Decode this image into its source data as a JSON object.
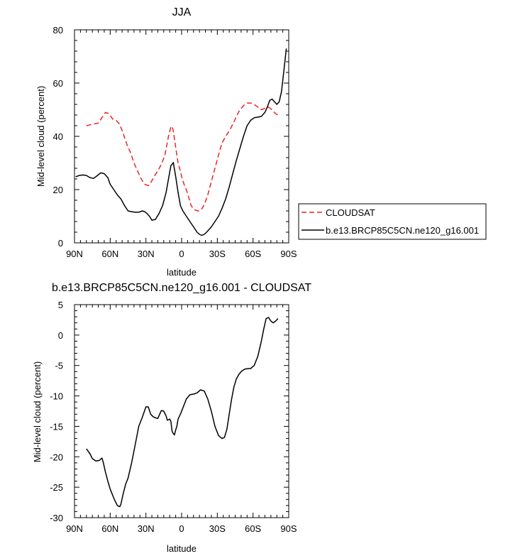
{
  "chart_data": [
    {
      "type": "line",
      "title": "JJA",
      "xlabel": "latitude",
      "ylabel": "Mid-level cloud (percent)",
      "xlim": [
        90,
        -90
      ],
      "ylim": [
        0,
        80
      ],
      "x_ticks": [
        90,
        60,
        30,
        0,
        -30,
        -60,
        -90
      ],
      "x_tick_labels": [
        "90N",
        "60N",
        "30N",
        "0",
        "30S",
        "60S",
        "90S"
      ],
      "y_ticks": [
        0,
        20,
        40,
        60,
        80
      ],
      "y_tick_labels": [
        "0",
        "20",
        "40",
        "60",
        "80"
      ],
      "legend": "outside-right",
      "series": [
        {
          "name": "CLOUDSAT",
          "color": "#e8262a",
          "style": "dashed",
          "x": [
            80,
            75,
            70,
            67,
            64,
            61,
            58,
            55,
            52,
            49,
            46,
            43,
            40,
            37,
            34,
            31,
            28,
            26,
            23,
            20,
            17,
            14,
            11,
            9,
            8,
            7,
            5,
            3,
            1,
            0,
            -2,
            -4,
            -6,
            -8,
            -10,
            -12,
            -14,
            -16,
            -18,
            -20,
            -22,
            -25,
            -28,
            -31,
            -34,
            -37,
            -40,
            -43,
            -46,
            -49,
            -52,
            -55,
            -58,
            -61,
            -64,
            -67,
            -70,
            -73,
            -76,
            -79,
            -81
          ],
          "y": [
            44,
            44.5,
            45,
            47,
            49,
            48.5,
            46.5,
            46,
            44.5,
            41,
            37,
            34,
            30,
            27,
            24,
            22,
            21.5,
            22.5,
            25,
            27,
            29.5,
            33,
            40,
            43.5,
            43.8,
            42,
            36,
            30,
            27,
            25,
            22,
            20,
            17,
            14,
            12.8,
            12.2,
            12,
            12.2,
            13.5,
            15.5,
            18,
            23,
            28,
            33,
            37.5,
            40,
            42,
            44.5,
            47.5,
            50,
            51.5,
            52.5,
            52.5,
            52,
            51,
            50,
            50.5,
            51,
            50,
            48.5,
            48
          ]
        },
        {
          "name": "b.e13.BRCP85C5CN.ne120_g16.001",
          "color": "#000000",
          "style": "solid",
          "x": [
            89,
            86,
            83,
            80,
            77,
            74,
            71,
            68,
            65,
            62,
            60,
            57,
            54,
            51,
            48,
            45,
            42,
            39,
            36,
            33,
            31,
            29,
            27,
            25,
            22,
            19,
            16,
            13,
            11,
            9,
            8,
            7,
            5,
            3,
            1,
            -1,
            -4,
            -7,
            -10,
            -13,
            -15,
            -17,
            -19,
            -21,
            -23,
            -25,
            -28,
            -31,
            -34,
            -37,
            -40,
            -43,
            -46,
            -49,
            -52,
            -55,
            -58,
            -61,
            -64,
            -67,
            -70,
            -72,
            -74,
            -76,
            -78,
            -80,
            -82,
            -84,
            -86,
            -88
          ],
          "y": [
            24.8,
            25.3,
            25.5,
            25.3,
            24.5,
            24.2,
            25.2,
            26.3,
            26,
            24.5,
            22,
            20,
            18,
            16.5,
            14,
            12,
            11.7,
            11.5,
            11.5,
            12,
            11.7,
            11,
            10,
            8.5,
            8.8,
            11,
            14,
            19,
            24,
            29,
            29.5,
            30.2,
            25,
            19,
            14,
            12,
            10,
            8,
            6,
            4,
            3.2,
            2.8,
            3.2,
            4,
            5,
            6,
            8,
            10,
            13,
            16.5,
            21,
            26,
            31,
            35.5,
            40,
            44,
            46,
            47,
            47.2,
            47.5,
            49,
            51,
            53.5,
            54,
            53,
            52,
            53,
            57,
            65,
            73
          ]
        }
      ]
    },
    {
      "type": "line",
      "title": "b.e13.BRCP85C5CN.ne120_g16.001 - CLOUDSAT",
      "xlabel": "latitude",
      "ylabel": "Mid-level cloud (percent)",
      "xlim": [
        90,
        -90
      ],
      "ylim": [
        -30,
        5
      ],
      "x_ticks": [
        90,
        60,
        30,
        0,
        -30,
        -60,
        -90
      ],
      "x_tick_labels": [
        "90N",
        "60N",
        "30N",
        "0",
        "30S",
        "60S",
        "90S"
      ],
      "y_ticks": [
        5,
        0,
        -5,
        -10,
        -15,
        -20,
        -25,
        -30
      ],
      "y_tick_labels": [
        "5",
        "0",
        "-5",
        "-10",
        "-15",
        "-20",
        "-25",
        "-30"
      ],
      "series": [
        {
          "color": "#000000",
          "style": "solid",
          "x": [
            80,
            77,
            75,
            72,
            69,
            67,
            66,
            64,
            62,
            60,
            58,
            56,
            54,
            52,
            51,
            49,
            47,
            45,
            42,
            39,
            36,
            33,
            30,
            28,
            26,
            24,
            22,
            20,
            17,
            15,
            13,
            12,
            10,
            9,
            8,
            7,
            6,
            5,
            4,
            3,
            1,
            -1,
            -4,
            -7,
            -10,
            -13,
            -16,
            -19,
            -22,
            -25,
            -28,
            -31,
            -34,
            -36,
            -38,
            -40,
            -42,
            -44,
            -46,
            -48,
            -50,
            -53,
            -56,
            -58,
            -61,
            -64,
            -67,
            -69,
            -71,
            -73,
            -75,
            -77,
            -79,
            -81
          ],
          "y": [
            -18.7,
            -19.5,
            -20.3,
            -20.7,
            -20.6,
            -20.2,
            -20.8,
            -22.5,
            -24,
            -25.3,
            -26.3,
            -27.2,
            -28,
            -28.2,
            -27.8,
            -26,
            -24.5,
            -23.5,
            -21,
            -18,
            -15,
            -13.5,
            -11.8,
            -11.8,
            -13,
            -13.4,
            -13.6,
            -13.7,
            -12.4,
            -12.5,
            -13.3,
            -14,
            -13.8,
            -14.2,
            -15.8,
            -16.2,
            -16.4,
            -15.6,
            -15,
            -13.8,
            -13,
            -12,
            -10.5,
            -9.8,
            -9.7,
            -9.5,
            -9,
            -9.2,
            -10.5,
            -12.5,
            -15,
            -16.5,
            -17,
            -16.8,
            -15.5,
            -13,
            -10.5,
            -8.5,
            -7.2,
            -6.5,
            -6,
            -5.6,
            -5.5,
            -5.5,
            -5,
            -3.5,
            -1,
            1,
            2.7,
            2.9,
            2.3,
            2,
            2.3,
            2.7
          ]
        }
      ]
    }
  ]
}
